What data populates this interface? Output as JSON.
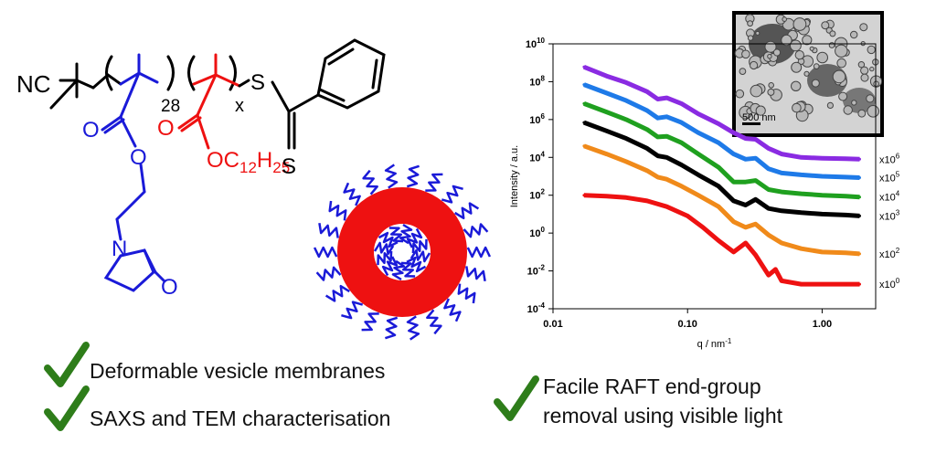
{
  "structure": {
    "nc_label": "NC",
    "dp_label": "28",
    "x_label": "x",
    "s1_label": "S",
    "s2_label": "S",
    "o_carbonyl1": "O",
    "o_ester1": "O",
    "n_label": "N",
    "o_lactam": "O",
    "o_carbonyl2": "O",
    "alkyl_label": "OC12H25"
  },
  "bullets": {
    "left1": "Deformable vesicle membranes",
    "left2": "SAXS and TEM characterisation",
    "right_line1": "Facile RAFT end-group",
    "right_line2": "removal using visible light"
  },
  "tem_inset": {
    "scale_bar_label": "500 nm"
  },
  "colors": {
    "blue": "#1a1ad8",
    "red": "#ee1111",
    "check_green": "#2e7d1a"
  },
  "chart_data": {
    "type": "line",
    "xlabel": "q / nm-1",
    "ylabel": "Intensity / a.u.",
    "x_scale": "log",
    "y_scale": "log",
    "xlim": [
      0.01,
      2.5
    ],
    "ylim": [
      0.0001,
      10000000000
    ],
    "x_ticks": [
      {
        "value": 0.01,
        "label": "0.01"
      },
      {
        "value": 0.1,
        "label": "0.10"
      },
      {
        "value": 1,
        "label": "1.00"
      }
    ],
    "y_ticks": [
      {
        "value": 0.0001,
        "base": "10",
        "exp": "-4"
      },
      {
        "value": 0.01,
        "base": "10",
        "exp": "-2"
      },
      {
        "value": 1,
        "base": "10",
        "exp": "0"
      },
      {
        "value": 100,
        "base": "10",
        "exp": "2"
      },
      {
        "value": 10000,
        "base": "10",
        "exp": "4"
      },
      {
        "value": 1000000,
        "base": "10",
        "exp": "6"
      },
      {
        "value": 100000000,
        "base": "10",
        "exp": "8"
      },
      {
        "value": 10000000000,
        "base": "10",
        "exp": "10"
      }
    ],
    "grid": false,
    "legend": "none",
    "series": [
      {
        "color": "#8a2be2",
        "multiplier": "x10",
        "exp": "6",
        "x": [
          0.017,
          0.025,
          0.035,
          0.05,
          0.06,
          0.07,
          0.09,
          0.12,
          0.17,
          0.22,
          0.27,
          0.32,
          0.4,
          0.5,
          0.7,
          1,
          1.5,
          1.9
        ],
        "y": [
          600000000,
          200000000,
          90000000,
          30000000,
          12000000,
          14000000,
          7000000,
          2000000,
          600000,
          200000,
          100000,
          90000,
          30000,
          15000,
          10000,
          9000,
          8500,
          8000
        ]
      },
      {
        "color": "#1e7ae8",
        "multiplier": "x10",
        "exp": "5",
        "x": [
          0.017,
          0.025,
          0.035,
          0.05,
          0.06,
          0.07,
          0.09,
          0.12,
          0.17,
          0.22,
          0.27,
          0.32,
          0.4,
          0.5,
          0.7,
          1,
          1.5,
          1.9
        ],
        "y": [
          70000000,
          25000000,
          10000000,
          3000000,
          1200000,
          1400000,
          700000,
          200000,
          60000,
          15000,
          8000,
          9000,
          2500,
          1500,
          1200,
          1000,
          900,
          850
        ]
      },
      {
        "color": "#1fa01f",
        "multiplier": "x10",
        "exp": "4",
        "x": [
          0.017,
          0.025,
          0.035,
          0.05,
          0.06,
          0.07,
          0.09,
          0.12,
          0.17,
          0.22,
          0.27,
          0.32,
          0.4,
          0.5,
          0.7,
          1,
          1.5,
          1.9
        ],
        "y": [
          7000000,
          2500000,
          1000000,
          300000,
          120000,
          130000,
          60000,
          15000,
          3000,
          500,
          500,
          600,
          200,
          150,
          120,
          100,
          90,
          80
        ]
      },
      {
        "color": "#000000",
        "multiplier": "x10",
        "exp": "3",
        "x": [
          0.017,
          0.025,
          0.035,
          0.05,
          0.06,
          0.07,
          0.09,
          0.12,
          0.17,
          0.22,
          0.27,
          0.32,
          0.4,
          0.5,
          0.7,
          1,
          1.5,
          1.9
        ],
        "y": [
          700000,
          250000,
          100000,
          30000,
          12000,
          10000,
          4000,
          1200,
          300,
          50,
          30,
          60,
          20,
          15,
          12,
          10,
          9,
          8
        ]
      },
      {
        "color": "#f08a1a",
        "multiplier": "x10",
        "exp": "2",
        "x": [
          0.017,
          0.025,
          0.035,
          0.05,
          0.06,
          0.07,
          0.09,
          0.12,
          0.17,
          0.22,
          0.27,
          0.32,
          0.4,
          0.5,
          0.7,
          1,
          1.5,
          1.9
        ],
        "y": [
          40000,
          15000,
          6000,
          2000,
          900,
          700,
          300,
          100,
          25,
          4,
          2,
          3,
          0.8,
          0.3,
          0.15,
          0.1,
          0.09,
          0.08
        ]
      },
      {
        "color": "#ee1111",
        "multiplier": "x10",
        "exp": "0",
        "x": [
          0.017,
          0.025,
          0.035,
          0.05,
          0.07,
          0.1,
          0.13,
          0.17,
          0.22,
          0.27,
          0.32,
          0.4,
          0.45,
          0.5,
          0.7,
          1,
          1.5,
          1.9
        ],
        "y": [
          100,
          90,
          75,
          50,
          25,
          8,
          2,
          0.4,
          0.1,
          0.3,
          0.07,
          0.006,
          0.012,
          0.003,
          0.002,
          0.002,
          0.002,
          0.002
        ]
      }
    ]
  }
}
